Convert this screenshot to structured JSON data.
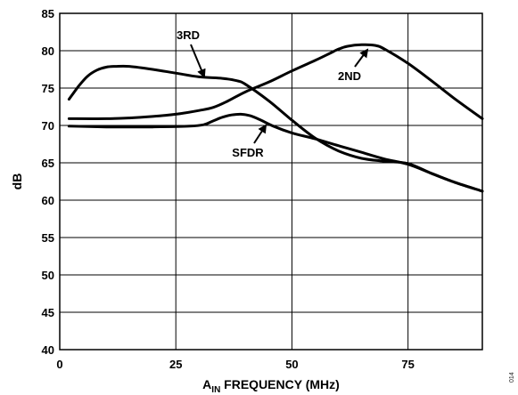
{
  "chart_data": {
    "type": "line",
    "xlabel_main": "A",
    "xlabel_sub": "IN",
    "xlabel_rest": " FREQUENCY (MHz)",
    "ylabel": "dB",
    "xlim": [
      0,
      91
    ],
    "ylim": [
      40,
      85
    ],
    "xticks": [
      0,
      25,
      50,
      75
    ],
    "yticks": [
      40,
      45,
      50,
      55,
      60,
      65,
      70,
      75,
      80,
      85
    ],
    "grid": true,
    "series": [
      {
        "name": "3RD",
        "x": [
          2,
          4,
          6,
          8,
          10,
          12,
          15,
          20,
          25,
          30,
          35,
          38,
          40,
          45,
          50,
          55,
          60,
          65,
          70,
          75,
          80,
          85,
          91
        ],
        "y": [
          73.5,
          75.2,
          76.6,
          77.4,
          77.8,
          77.9,
          77.9,
          77.5,
          77.0,
          76.5,
          76.3,
          76.0,
          75.5,
          73.3,
          70.7,
          68.3,
          66.6,
          65.6,
          65.2,
          64.9,
          63.6,
          62.4,
          61.2
        ]
      },
      {
        "name": "2ND",
        "x": [
          2,
          10,
          15,
          20,
          25,
          30,
          33,
          36,
          40,
          45,
          50,
          55,
          58,
          60,
          62,
          65,
          68,
          70,
          75,
          80,
          85,
          91
        ],
        "y": [
          70.9,
          70.9,
          71.0,
          71.2,
          71.5,
          72.0,
          72.4,
          73.2,
          74.5,
          75.8,
          77.3,
          78.7,
          79.6,
          80.2,
          80.6,
          80.8,
          80.7,
          80.2,
          78.3,
          76.0,
          73.6,
          70.9
        ]
      },
      {
        "name": "SFDR",
        "x": [
          2,
          10,
          20,
          28,
          31,
          33,
          35,
          37,
          39,
          41,
          43,
          46,
          50,
          55,
          60,
          65,
          70,
          75,
          80,
          85,
          91
        ],
        "y": [
          69.9,
          69.8,
          69.8,
          69.9,
          70.1,
          70.6,
          71.1,
          71.4,
          71.5,
          71.3,
          70.8,
          69.9,
          69.0,
          68.2,
          67.3,
          66.4,
          65.5,
          64.8,
          63.6,
          62.4,
          61.2
        ]
      }
    ],
    "annotations": [
      {
        "text": "3RD",
        "series": "3RD"
      },
      {
        "text": "2ND",
        "series": "2ND"
      },
      {
        "text": "SFDR",
        "series": "SFDR"
      }
    ]
  },
  "figure_id": "014",
  "colors": {
    "line": "#000000",
    "grid": "#000000",
    "background": "#ffffff"
  }
}
